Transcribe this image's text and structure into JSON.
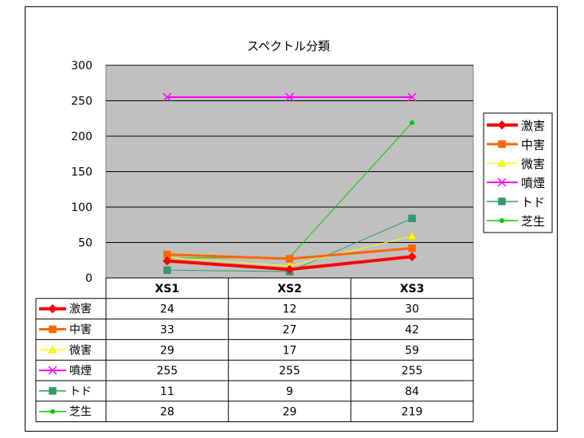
{
  "chart_data": {
    "type": "line",
    "title": "スペクトル分類",
    "xlabel": "",
    "ylabel": "",
    "categories": [
      "XS1",
      "XS2",
      "XS3"
    ],
    "ylim": [
      0,
      300
    ],
    "yticks": [
      0,
      50,
      100,
      150,
      200,
      250,
      300
    ],
    "grid": true,
    "legend_position": "right",
    "data_table": true,
    "plot_background": "#c0c0c0",
    "series": [
      {
        "name": "激害",
        "values": [
          24,
          12,
          30
        ],
        "color": "#ff0000",
        "marker": "diamond",
        "line_width": 4
      },
      {
        "name": "中害",
        "values": [
          33,
          27,
          42
        ],
        "color": "#ff6600",
        "marker": "square",
        "line_width": 3
      },
      {
        "name": "微害",
        "values": [
          29,
          17,
          59
        ],
        "color": "#ffff00",
        "marker": "triangle",
        "line_width": 1
      },
      {
        "name": "噴煙",
        "values": [
          255,
          255,
          255
        ],
        "color": "#ff00ff",
        "marker": "x",
        "line_width": 2
      },
      {
        "name": "トド",
        "values": [
          11,
          9,
          84
        ],
        "color": "#339966",
        "marker": "square",
        "line_width": 1
      },
      {
        "name": "芝生",
        "values": [
          28,
          29,
          219
        ],
        "color": "#00cc00",
        "marker": "circle",
        "line_width": 1
      }
    ]
  }
}
